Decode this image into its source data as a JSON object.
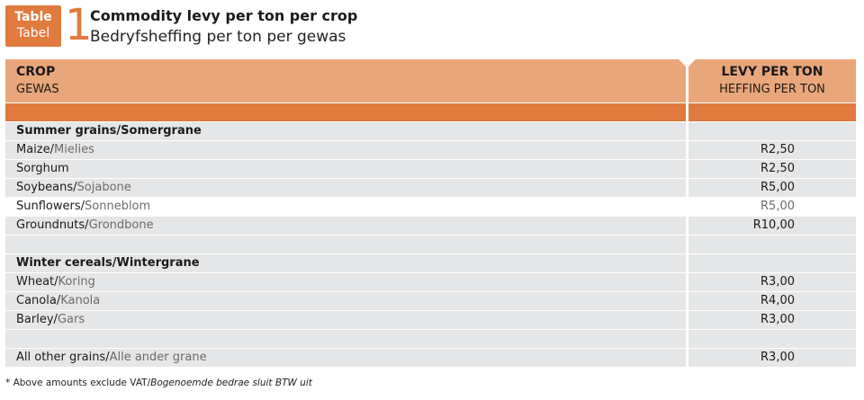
{
  "badge": {
    "line1": "Table",
    "line2": "Tabel"
  },
  "table_number": "1",
  "title": {
    "english": "Commodity levy per ton per crop",
    "afrikaans": "Bedryfsheffing per ton per gewas"
  },
  "header": {
    "crop": "CROP",
    "crop_af": "GEWAS",
    "levy": "LEVY PER TON",
    "levy_af": "HEFFING PER TON"
  },
  "rows": [
    {
      "en": "Summer grains",
      "sep": "/",
      "af": "Somergrane",
      "levy": "",
      "heading": true
    },
    {
      "en": "Maize",
      "sep": "/",
      "af": "Mielies",
      "levy": "R2,50"
    },
    {
      "en": "Sorghum",
      "sep": "",
      "af": "",
      "levy": "R2,50"
    },
    {
      "en": "Soybeans",
      "sep": "/",
      "af": "Sojabone",
      "levy": "R5,00"
    },
    {
      "en": "Sunflowers",
      "sep": "/",
      "af": "Sonneblom",
      "levy": "R5,00"
    },
    {
      "en": "Groundnuts",
      "sep": "/",
      "af": "Grondbone",
      "levy": "R10,00"
    },
    {
      "en": "",
      "sep": "",
      "af": "",
      "levy": ""
    },
    {
      "en": "Winter cereals",
      "sep": "/",
      "af": "Wintergrane",
      "levy": "",
      "heading": true
    },
    {
      "en": "Wheat",
      "sep": "/",
      "af": "Koring",
      "levy": "R3,00"
    },
    {
      "en": "Canola",
      "sep": "/",
      "af": "Kanola",
      "levy": "R4,00"
    },
    {
      "en": "Barley",
      "sep": "/",
      "af": "Gars",
      "levy": "R3,00"
    },
    {
      "en": "",
      "sep": "",
      "af": "",
      "levy": ""
    },
    {
      "en": "All other grains",
      "sep": "/",
      "af": "Alle ander grane",
      "levy": "R3,00"
    }
  ],
  "footnote": {
    "english": "* Above amounts exclude VAT/",
    "afrikaans": "Bogenoemde bedrae sluit BTW uit"
  },
  "colors": {
    "accent": "#e07a3e",
    "header_fill": "#eaa67b",
    "row_grey": "#e5e6e7",
    "translation_text": "#6b6b6b"
  }
}
